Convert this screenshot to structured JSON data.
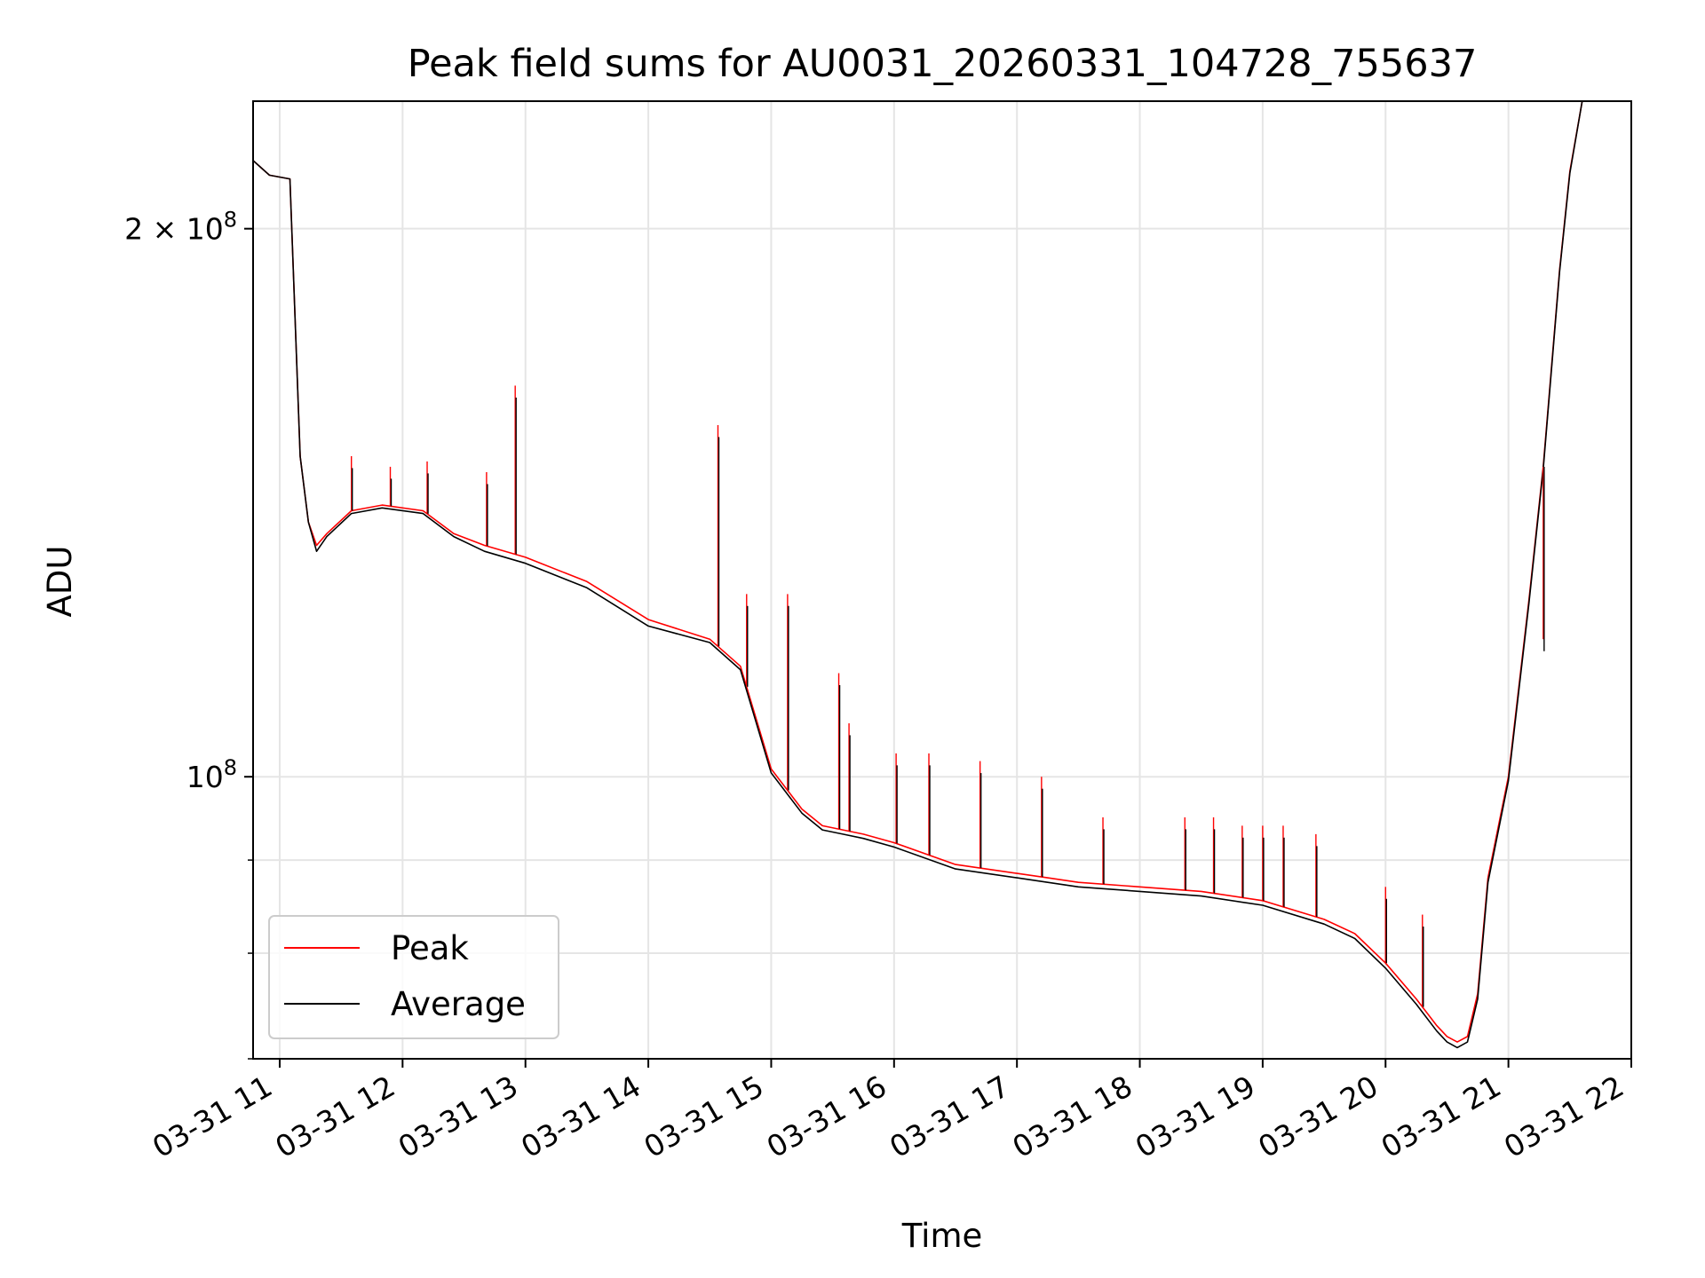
{
  "chart_data": {
    "type": "line",
    "title": "Peak field sums for AU0031_20260331_104728_755637",
    "xlabel": "Time",
    "ylabel": "ADU",
    "y_scale": "log",
    "xlim": [
      "2026-03-31 10:47",
      "2026-03-31 22:00"
    ],
    "ylim": [
      70000000,
      235000000
    ],
    "x_ticks": [
      "03-31 11",
      "03-31 12",
      "03-31 13",
      "03-31 14",
      "03-31 15",
      "03-31 16",
      "03-31 17",
      "03-31 18",
      "03-31 19",
      "03-31 20",
      "03-31 21",
      "03-31 22"
    ],
    "y_tick_labels": [
      {
        "value": 100000000,
        "mantissa": "10",
        "exponent": "8"
      },
      {
        "value": 200000000,
        "mantissa": "2 × 10",
        "exponent": "8"
      }
    ],
    "y_minor_ticks": [
      70000000,
      80000000,
      90000000
    ],
    "grid": true,
    "legend_position": "lower-left",
    "colors": {
      "Peak": "#ff0000",
      "Average": "#000000"
    },
    "series": [
      {
        "name": "Peak",
        "x": [
          "2026-03-31 10:47",
          "2026-03-31 10:55",
          "2026-03-31 11:05",
          "2026-03-31 11:10",
          "2026-03-31 11:14",
          "2026-03-31 11:18",
          "2026-03-31 11:23",
          "2026-03-31 11:35",
          "2026-03-31 11:50",
          "2026-03-31 12:10",
          "2026-03-31 12:25",
          "2026-03-31 12:40",
          "2026-03-31 13:00",
          "2026-03-31 13:30",
          "2026-03-31 14:00",
          "2026-03-31 14:30",
          "2026-03-31 14:45",
          "2026-03-31 15:00",
          "2026-03-31 15:15",
          "2026-03-31 15:25",
          "2026-03-31 15:35",
          "2026-03-31 15:45",
          "2026-03-31 16:00",
          "2026-03-31 16:30",
          "2026-03-31 17:00",
          "2026-03-31 17:15",
          "2026-03-31 17:30",
          "2026-03-31 18:00",
          "2026-03-31 18:30",
          "2026-03-31 19:00",
          "2026-03-31 19:30",
          "2026-03-31 19:45",
          "2026-03-31 20:00",
          "2026-03-31 20:15",
          "2026-03-31 20:25",
          "2026-03-31 20:30",
          "2026-03-31 20:35",
          "2026-03-31 20:40",
          "2026-03-31 20:45",
          "2026-03-31 20:50",
          "2026-03-31 21:00",
          "2026-03-31 21:10",
          "2026-03-31 21:17",
          "2026-03-31 21:25",
          "2026-03-31 21:30",
          "2026-03-31 21:36",
          "2026-03-31 21:45",
          "2026-03-31 21:53"
        ],
        "values": [
          218000000,
          214000000,
          213000000,
          150000000,
          138000000,
          134000000,
          136000000,
          140000000,
          141000000,
          140000000,
          136000000,
          134000000,
          132000000,
          128000000,
          122000000,
          119000000,
          115000000,
          101000000,
          96000000,
          94000000,
          93500000,
          93000000,
          92000000,
          89500000,
          88500000,
          88000000,
          87500000,
          87000000,
          86500000,
          85500000,
          83500000,
          82000000,
          79000000,
          75500000,
          73000000,
          72000000,
          71500000,
          72000000,
          76000000,
          88000000,
          100000000,
          125000000,
          148000000,
          190000000,
          215000000,
          235000000,
          235000000,
          235000000
        ]
      },
      {
        "name": "Average",
        "x": [
          "2026-03-31 10:47",
          "2026-03-31 10:55",
          "2026-03-31 11:05",
          "2026-03-31 11:10",
          "2026-03-31 11:14",
          "2026-03-31 11:18",
          "2026-03-31 11:23",
          "2026-03-31 11:35",
          "2026-03-31 11:50",
          "2026-03-31 12:10",
          "2026-03-31 12:25",
          "2026-03-31 12:40",
          "2026-03-31 13:00",
          "2026-03-31 13:30",
          "2026-03-31 14:00",
          "2026-03-31 14:30",
          "2026-03-31 14:45",
          "2026-03-31 15:00",
          "2026-03-31 15:15",
          "2026-03-31 15:25",
          "2026-03-31 15:35",
          "2026-03-31 15:45",
          "2026-03-31 16:00",
          "2026-03-31 16:30",
          "2026-03-31 17:00",
          "2026-03-31 17:15",
          "2026-03-31 17:30",
          "2026-03-31 18:00",
          "2026-03-31 18:30",
          "2026-03-31 19:00",
          "2026-03-31 19:30",
          "2026-03-31 19:45",
          "2026-03-31 20:00",
          "2026-03-31 20:15",
          "2026-03-31 20:25",
          "2026-03-31 20:30",
          "2026-03-31 20:35",
          "2026-03-31 20:40",
          "2026-03-31 20:45",
          "2026-03-31 20:50",
          "2026-03-31 21:00",
          "2026-03-31 21:10",
          "2026-03-31 21:17",
          "2026-03-31 21:25",
          "2026-03-31 21:30",
          "2026-03-31 21:36",
          "2026-03-31 21:45",
          "2026-03-31 21:53"
        ],
        "values": [
          218000000,
          214000000,
          213000000,
          150000000,
          138000000,
          133000000,
          135500000,
          139500000,
          140500000,
          139500000,
          135500000,
          133000000,
          131000000,
          127000000,
          121000000,
          118500000,
          114500000,
          100500000,
          95500000,
          93500000,
          93000000,
          92500000,
          91500000,
          89000000,
          88000000,
          87500000,
          87000000,
          86500000,
          86000000,
          85000000,
          83000000,
          81500000,
          78500000,
          75000000,
          72500000,
          71500000,
          71000000,
          71500000,
          75500000,
          87500000,
          99500000,
          124500000,
          147500000,
          189500000,
          214500000,
          235000000,
          235000000,
          235000000
        ]
      }
    ],
    "spikes": [
      {
        "x": "2026-03-31 11:35",
        "peak": 150000000
      },
      {
        "x": "2026-03-31 11:54",
        "peak": 148000000
      },
      {
        "x": "2026-03-31 12:12",
        "peak": 149000000
      },
      {
        "x": "2026-03-31 12:41",
        "peak": 147000000
      },
      {
        "x": "2026-03-31 12:55",
        "peak": 164000000
      },
      {
        "x": "2026-03-31 14:34",
        "peak": 156000000
      },
      {
        "x": "2026-03-31 14:48",
        "peak": 126000000
      },
      {
        "x": "2026-03-31 15:08",
        "peak": 126000000
      },
      {
        "x": "2026-03-31 15:33",
        "peak": 114000000
      },
      {
        "x": "2026-03-31 15:38",
        "peak": 107000000
      },
      {
        "x": "2026-03-31 16:01",
        "peak": 103000000
      },
      {
        "x": "2026-03-31 16:17",
        "peak": 103000000
      },
      {
        "x": "2026-03-31 16:42",
        "peak": 102000000
      },
      {
        "x": "2026-03-31 17:12",
        "peak": 100000000
      },
      {
        "x": "2026-03-31 17:42",
        "peak": 95000000
      },
      {
        "x": "2026-03-31 18:22",
        "peak": 95000000
      },
      {
        "x": "2026-03-31 18:36",
        "peak": 95000000
      },
      {
        "x": "2026-03-31 18:50",
        "peak": 94000000
      },
      {
        "x": "2026-03-31 19:00",
        "peak": 94000000
      },
      {
        "x": "2026-03-31 19:10",
        "peak": 94000000
      },
      {
        "x": "2026-03-31 19:26",
        "peak": 93000000
      },
      {
        "x": "2026-03-31 20:00",
        "peak": 87000000
      },
      {
        "x": "2026-03-31 20:18",
        "peak": 84000000
      },
      {
        "x": "2026-03-31 21:17",
        "peak": 119000000
      }
    ]
  }
}
